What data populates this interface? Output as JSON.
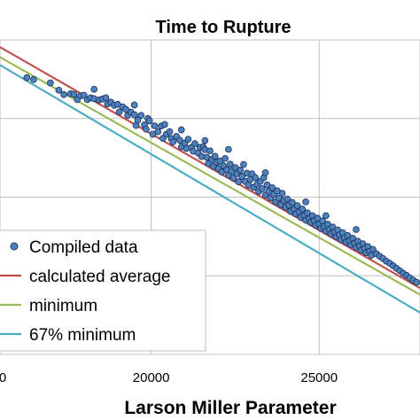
{
  "chart_data": {
    "type": "scatter",
    "title": "Time to Rupture",
    "xlabel": "Larson Miller Parameter",
    "ylabel": "",
    "x_ticks": [
      "20000",
      "25000"
    ],
    "x_tick_values": [
      20000,
      25000
    ],
    "x_partial_tick": "0",
    "xlim": [
      15500,
      28000
    ],
    "ylim": [
      0,
      1
    ],
    "y_gridlines": [
      0.25,
      0.5,
      0.75
    ],
    "grid": true,
    "legend_position": "lower-left",
    "legend": [
      "Compiled data",
      "calculated average",
      "minimum",
      "67% minimum"
    ],
    "series": [
      {
        "name": "Compiled data",
        "kind": "markers",
        "marker_color": "#4f81bd",
        "marker_edge": "#1f3864",
        "points": [
          [
            16300,
            0.88
          ],
          [
            16500,
            0.874
          ],
          [
            17000,
            0.863
          ],
          [
            17250,
            0.84
          ],
          [
            17400,
            0.826
          ],
          [
            17600,
            0.829
          ],
          [
            17700,
            0.827
          ],
          [
            17800,
            0.81
          ],
          [
            17900,
            0.822
          ],
          [
            18000,
            0.824
          ],
          [
            18100,
            0.81
          ],
          [
            18200,
            0.816
          ],
          [
            18300,
            0.813
          ],
          [
            18450,
            0.809
          ],
          [
            18550,
            0.812
          ],
          [
            18650,
            0.816
          ],
          [
            18700,
            0.796
          ],
          [
            18800,
            0.802
          ],
          [
            18900,
            0.792
          ],
          [
            19000,
            0.795
          ],
          [
            19050,
            0.771
          ],
          [
            19150,
            0.787
          ],
          [
            19250,
            0.779
          ],
          [
            19300,
            0.76
          ],
          [
            19400,
            0.77
          ],
          [
            19500,
            0.762
          ],
          [
            19550,
            0.728
          ],
          [
            19600,
            0.745
          ],
          [
            19700,
            0.76
          ],
          [
            19800,
            0.73
          ],
          [
            19850,
            0.716
          ],
          [
            19900,
            0.75
          ],
          [
            19950,
            0.743
          ],
          [
            20050,
            0.7
          ],
          [
            20100,
            0.727
          ],
          [
            20200,
            0.708
          ],
          [
            20300,
            0.726
          ],
          [
            20350,
            0.687
          ],
          [
            20450,
            0.7
          ],
          [
            20550,
            0.708
          ],
          [
            20600,
            0.686
          ],
          [
            20650,
            0.676
          ],
          [
            20750,
            0.693
          ],
          [
            20850,
            0.681
          ],
          [
            20900,
            0.66
          ],
          [
            21000,
            0.672
          ],
          [
            21050,
            0.655
          ],
          [
            21100,
            0.684
          ],
          [
            21200,
            0.658
          ],
          [
            21250,
            0.646
          ],
          [
            21300,
            0.67
          ],
          [
            21400,
            0.64
          ],
          [
            21450,
            0.658
          ],
          [
            21500,
            0.629
          ],
          [
            21550,
            0.66
          ],
          [
            21600,
            0.651
          ],
          [
            21650,
            0.627
          ],
          [
            21700,
            0.607
          ],
          [
            21750,
            0.647
          ],
          [
            21800,
            0.62
          ],
          [
            21850,
            0.598
          ],
          [
            21900,
            0.63
          ],
          [
            21950,
            0.611
          ],
          [
            22000,
            0.591
          ],
          [
            22050,
            0.615
          ],
          [
            22100,
            0.58
          ],
          [
            22150,
            0.6
          ],
          [
            22200,
            0.623
          ],
          [
            22250,
            0.587
          ],
          [
            22300,
            0.57
          ],
          [
            22350,
            0.605
          ],
          [
            22400,
            0.583
          ],
          [
            22450,
            0.561
          ],
          [
            22500,
            0.594
          ],
          [
            22550,
            0.575
          ],
          [
            22600,
            0.549
          ],
          [
            22650,
            0.586
          ],
          [
            22700,
            0.566
          ],
          [
            22750,
            0.604
          ],
          [
            22800,
            0.55
          ],
          [
            22850,
            0.576
          ],
          [
            22900,
            0.538
          ],
          [
            22950,
            0.556
          ],
          [
            23000,
            0.574
          ],
          [
            23050,
            0.531
          ],
          [
            23100,
            0.562
          ],
          [
            23150,
            0.541
          ],
          [
            23200,
            0.518
          ],
          [
            23250,
            0.55
          ],
          [
            23300,
            0.527
          ],
          [
            23350,
            0.562
          ],
          [
            23400,
            0.507
          ],
          [
            23450,
            0.539
          ],
          [
            23500,
            0.519
          ],
          [
            23550,
            0.497
          ],
          [
            23600,
            0.53
          ],
          [
            23650,
            0.509
          ],
          [
            23700,
            0.485
          ],
          [
            23750,
            0.52
          ],
          [
            23800,
            0.497
          ],
          [
            23850,
            0.476
          ],
          [
            23900,
            0.512
          ],
          [
            23950,
            0.489
          ],
          [
            24000,
            0.468
          ],
          [
            24050,
            0.494
          ],
          [
            24100,
            0.475
          ],
          [
            24150,
            0.455
          ],
          [
            24200,
            0.483
          ],
          [
            24250,
            0.462
          ],
          [
            24300,
            0.447
          ],
          [
            24350,
            0.473
          ],
          [
            24400,
            0.453
          ],
          [
            24450,
            0.436
          ],
          [
            24500,
            0.462
          ],
          [
            24550,
            0.442
          ],
          [
            24600,
            0.427
          ],
          [
            24650,
            0.45
          ],
          [
            24700,
            0.433
          ],
          [
            24750,
            0.42
          ],
          [
            24800,
            0.441
          ],
          [
            24850,
            0.425
          ],
          [
            24900,
            0.411
          ],
          [
            24950,
            0.433
          ],
          [
            25000,
            0.415
          ],
          [
            25050,
            0.401
          ],
          [
            25100,
            0.424
          ],
          [
            25150,
            0.406
          ],
          [
            25200,
            0.392
          ],
          [
            25250,
            0.414
          ],
          [
            25300,
            0.398
          ],
          [
            25350,
            0.383
          ],
          [
            25400,
            0.405
          ],
          [
            25450,
            0.389
          ],
          [
            25500,
            0.374
          ],
          [
            25550,
            0.396
          ],
          [
            25600,
            0.38
          ],
          [
            25650,
            0.365
          ],
          [
            25700,
            0.387
          ],
          [
            25750,
            0.371
          ],
          [
            25800,
            0.357
          ],
          [
            25850,
            0.378
          ],
          [
            25900,
            0.362
          ],
          [
            25950,
            0.348
          ],
          [
            26000,
            0.369
          ],
          [
            26050,
            0.354
          ],
          [
            26100,
            0.34
          ],
          [
            26150,
            0.36
          ],
          [
            26200,
            0.345
          ],
          [
            26250,
            0.331
          ],
          [
            26300,
            0.352
          ],
          [
            26350,
            0.337
          ],
          [
            26400,
            0.323
          ],
          [
            26450,
            0.343
          ],
          [
            26500,
            0.328
          ],
          [
            26550,
            0.315
          ],
          [
            26600,
            0.334
          ],
          [
            26700,
            0.32
          ],
          [
            26800,
            0.312
          ],
          [
            26900,
            0.305
          ],
          [
            27000,
            0.296
          ],
          [
            27100,
            0.29
          ],
          [
            27200,
            0.282
          ],
          [
            27300,
            0.274
          ],
          [
            27400,
            0.266
          ],
          [
            27500,
            0.258
          ],
          [
            27600,
            0.251
          ],
          [
            27700,
            0.243
          ],
          [
            27800,
            0.236
          ],
          [
            27900,
            0.229
          ],
          [
            22300,
            0.652
          ],
          [
            21600,
            0.68
          ],
          [
            20900,
            0.714
          ],
          [
            24600,
            0.485
          ],
          [
            25200,
            0.441
          ],
          [
            26100,
            0.397
          ],
          [
            23400,
            0.578
          ],
          [
            19500,
            0.793
          ],
          [
            18300,
            0.843
          ],
          [
            20400,
            0.731
          ]
        ]
      },
      {
        "name": "calculated average",
        "kind": "line",
        "color": "#c0504d",
        "points": [
          [
            15500,
            0.977
          ],
          [
            28000,
            0.211
          ]
        ]
      },
      {
        "name": "minimum",
        "kind": "line",
        "color": "#9bbb59",
        "points": [
          [
            15500,
            0.945
          ],
          [
            28000,
            0.19
          ]
        ]
      },
      {
        "name": "67% minimum",
        "kind": "line",
        "color": "#4bacc6",
        "points": [
          [
            15500,
            0.92
          ],
          [
            28000,
            0.133
          ]
        ]
      }
    ]
  }
}
